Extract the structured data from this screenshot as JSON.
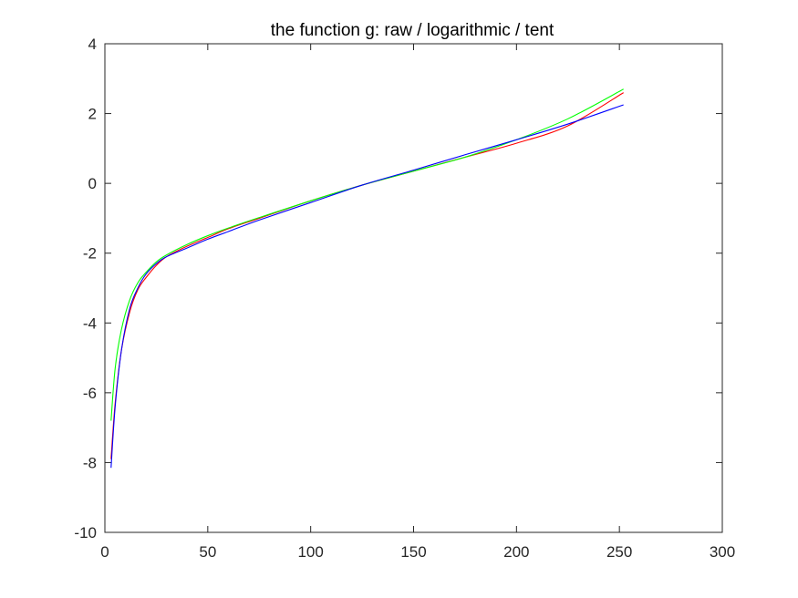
{
  "chart_data": {
    "type": "line",
    "title": "the function g: raw / logarithmic / tent",
    "xlabel": "",
    "ylabel": "",
    "xlim": [
      0,
      300
    ],
    "ylim": [
      -10,
      4
    ],
    "x_ticks": [
      0,
      50,
      100,
      150,
      200,
      250,
      300
    ],
    "y_ticks": [
      -10,
      -8,
      -6,
      -4,
      -2,
      0,
      2,
      4
    ],
    "x_tick_labels": [
      "0",
      "50",
      "100",
      "150",
      "200",
      "250",
      "300"
    ],
    "y_tick_labels": [
      "-10",
      "-8",
      "-6",
      "-4",
      "-2",
      "0",
      "2",
      "4"
    ],
    "grid": false,
    "legend": "none",
    "series": [
      {
        "color": "#ff0000",
        "x": [
          3,
          5,
          8,
          12,
          16,
          20,
          25,
          30,
          40,
          50,
          60,
          75,
          100,
          125,
          150,
          175,
          200,
          225,
          252
        ],
        "y": [
          -7.9,
          -6.3,
          -4.8,
          -3.7,
          -3.05,
          -2.7,
          -2.35,
          -2.1,
          -1.8,
          -1.55,
          -1.3,
          -1.0,
          -0.5,
          -0.05,
          0.35,
          0.75,
          1.15,
          1.65,
          2.6
        ]
      },
      {
        "color": "#00ff00",
        "x": [
          3,
          5,
          8,
          12,
          16,
          20,
          25,
          30,
          40,
          50,
          60,
          75,
          100,
          125,
          150,
          175,
          200,
          225,
          252
        ],
        "y": [
          -6.8,
          -5.3,
          -4.2,
          -3.35,
          -2.85,
          -2.55,
          -2.25,
          -2.05,
          -1.75,
          -1.5,
          -1.28,
          -0.98,
          -0.5,
          -0.05,
          0.35,
          0.75,
          1.25,
          1.85,
          2.7
        ]
      },
      {
        "color": "#0000ff",
        "x": [
          3,
          5,
          8,
          12,
          16,
          20,
          25,
          30,
          40,
          50,
          60,
          75,
          100,
          125,
          150,
          175,
          200,
          225,
          252
        ],
        "y": [
          -8.15,
          -6.4,
          -4.8,
          -3.6,
          -3.0,
          -2.6,
          -2.3,
          -2.1,
          -1.85,
          -1.6,
          -1.38,
          -1.05,
          -0.55,
          -0.05,
          0.38,
          0.82,
          1.25,
          1.7,
          2.25
        ]
      }
    ]
  }
}
